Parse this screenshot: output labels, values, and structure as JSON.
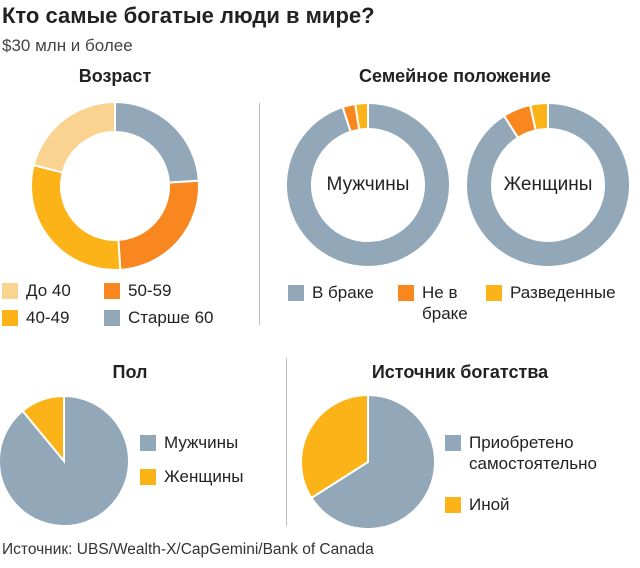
{
  "header": {
    "title": "Кто самые богатые люди в мире?",
    "subtitle": "$30 млн и более"
  },
  "colors": {
    "under40": "#fbd391",
    "age40_49": "#fbb318",
    "age50_59": "#f7871e",
    "over60": "#92a8b8",
    "married": "#92a8b8",
    "not_married": "#f7871e",
    "divorced": "#fbb318",
    "men": "#92a8b8",
    "women": "#fbb318",
    "self_made": "#92a8b8",
    "other": "#fbb318"
  },
  "chart_data": [
    {
      "id": "age",
      "type": "pie",
      "title": "Возраст",
      "donut": true,
      "slices": [
        {
          "label": "Старше 60",
          "value": 24,
          "color": "#92a8b8"
        },
        {
          "label": "50-59",
          "value": 25,
          "color": "#f7871e"
        },
        {
          "label": "40-49",
          "value": 30,
          "color": "#fbb318"
        },
        {
          "label": "До 40",
          "value": 21,
          "color": "#fbd391"
        }
      ],
      "legend": [
        {
          "label": "До 40",
          "color": "#fbd391"
        },
        {
          "label": "50-59",
          "color": "#f7871e"
        },
        {
          "label": "40-49",
          "color": "#fbb318"
        },
        {
          "label": "Старше 60",
          "color": "#92a8b8"
        }
      ]
    },
    {
      "id": "family",
      "type": "pie",
      "title": "Семейное положение",
      "donut": true,
      "series": [
        {
          "name": "Мужчины",
          "slices": [
            {
              "label": "В браке",
              "value": 95,
              "color": "#92a8b8"
            },
            {
              "label": "Не в браке",
              "value": 2.5,
              "color": "#f7871e"
            },
            {
              "label": "Разведенные",
              "value": 2.5,
              "color": "#fbb318"
            }
          ]
        },
        {
          "name": "Женщины",
          "slices": [
            {
              "label": "В браке",
              "value": 91,
              "color": "#92a8b8"
            },
            {
              "label": "Не в браке",
              "value": 5.5,
              "color": "#f7871e"
            },
            {
              "label": "Разведенные",
              "value": 3.5,
              "color": "#fbb318"
            }
          ]
        }
      ],
      "legend": [
        {
          "label": "В браке",
          "color": "#92a8b8"
        },
        {
          "label": "Не в браке",
          "color": "#f7871e"
        },
        {
          "label": "Разведенные",
          "color": "#fbb318"
        }
      ]
    },
    {
      "id": "gender",
      "type": "pie",
      "title": "Пол",
      "donut": false,
      "slices": [
        {
          "label": "Мужчины",
          "value": 89,
          "color": "#92a8b8"
        },
        {
          "label": "Женщины",
          "value": 11,
          "color": "#fbb318"
        }
      ],
      "legend": [
        {
          "label": "Мужчины",
          "color": "#92a8b8"
        },
        {
          "label": "Женщины",
          "color": "#fbb318"
        }
      ]
    },
    {
      "id": "wealth",
      "type": "pie",
      "title": "Источник богатства",
      "donut": false,
      "slices": [
        {
          "label": "Приобретено самостоятельно",
          "value": 66,
          "color": "#92a8b8"
        },
        {
          "label": "Иной",
          "value": 34,
          "color": "#fbb318"
        }
      ],
      "legend": [
        {
          "label": "Приобретено самостоятельно",
          "color": "#92a8b8"
        },
        {
          "label": "Иной",
          "color": "#fbb318"
        }
      ]
    }
  ],
  "footer": {
    "source": "Источник: UBS/Wealth-X/CapGemini/Bank of Canada"
  }
}
